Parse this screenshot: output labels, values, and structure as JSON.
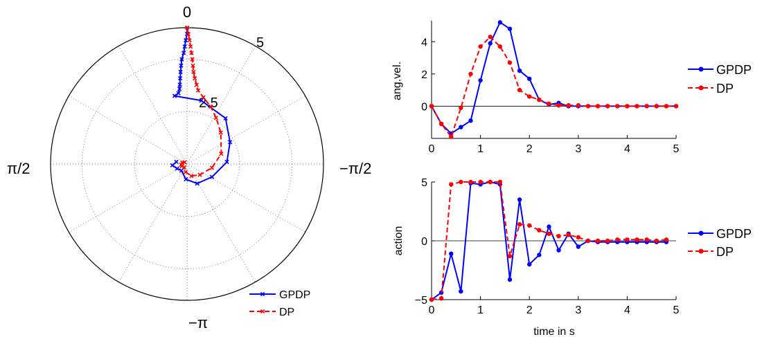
{
  "colors": {
    "gpdp": "#0000ff",
    "dp": "#ff0000",
    "axis": "#000000",
    "grid": "#808080"
  },
  "chart_data": [
    {
      "type": "polar",
      "angle_labels": {
        "top": "0",
        "right": "−π/2",
        "bottom": "−π",
        "left": "π/2"
      },
      "r_labels": [
        "2.5",
        "5"
      ],
      "rmax": 6.5,
      "legend_position": "bottom-right",
      "series": [
        {
          "name": "GPDP",
          "marker": "x",
          "line": "solid",
          "points": [
            [
              0.0,
              6.5
            ],
            [
              0.0,
              6.2
            ],
            [
              0.01,
              5.9
            ],
            [
              0.02,
              5.6
            ],
            [
              0.03,
              5.3
            ],
            [
              0.05,
              5.0
            ],
            [
              0.06,
              4.7
            ],
            [
              0.07,
              4.4
            ],
            [
              0.08,
              4.1
            ],
            [
              0.09,
              3.8
            ],
            [
              0.1,
              3.6
            ],
            [
              0.12,
              3.4
            ],
            [
              0.18,
              3.3
            ],
            [
              -0.22,
              3.1
            ],
            [
              -0.7,
              2.85
            ],
            [
              -1.1,
              2.3
            ],
            [
              -1.52,
              1.9
            ],
            [
              -2.05,
              1.34
            ],
            [
              -2.66,
              1.05
            ],
            [
              3.07,
              0.73
            ],
            [
              2.43,
              0.41
            ],
            [
              2.0,
              0.52
            ],
            [
              1.66,
              0.7
            ],
            [
              1.37,
              0.52
            ]
          ]
        },
        {
          "name": "DP",
          "marker": "x",
          "line": "dashed",
          "points": [
            [
              0.0,
              6.5
            ],
            [
              -0.01,
              6.2
            ],
            [
              -0.02,
              5.9
            ],
            [
              -0.03,
              5.6
            ],
            [
              -0.04,
              5.3
            ],
            [
              -0.05,
              5.0
            ],
            [
              -0.06,
              4.7
            ],
            [
              -0.07,
              4.4
            ],
            [
              -0.09,
              4.1
            ],
            [
              -0.12,
              3.8
            ],
            [
              -0.15,
              3.55
            ],
            [
              -0.24,
              3.27
            ],
            [
              -0.39,
              2.96
            ],
            [
              -0.56,
              2.6
            ],
            [
              -0.82,
              2.2
            ],
            [
              -1.28,
              1.7
            ],
            [
              -1.72,
              1.2
            ],
            [
              -2.27,
              0.8
            ],
            [
              -2.79,
              0.61
            ],
            [
              2.97,
              0.39
            ],
            [
              2.44,
              0.21
            ],
            [
              1.96,
              0.26
            ],
            [
              1.7,
              0.28
            ],
            [
              1.28,
              0.24
            ],
            [
              0.95,
              0.14
            ]
          ]
        }
      ]
    },
    {
      "type": "line",
      "xlabel": "",
      "ylabel": "ang.vel.",
      "xlim": [
        0,
        5
      ],
      "ylim": [
        -2,
        5.3
      ],
      "xticks": [
        0,
        1,
        2,
        3,
        4,
        5
      ],
      "yticks": [
        0,
        2,
        4
      ],
      "legend_position": "right",
      "x": [
        0,
        0.2,
        0.4,
        0.6,
        0.8,
        1.0,
        1.2,
        1.4,
        1.6,
        1.8,
        2.0,
        2.2,
        2.4,
        2.6,
        2.8,
        3.0,
        3.2,
        3.4,
        3.6,
        3.8,
        4.0,
        4.2,
        4.4,
        4.6,
        4.8,
        5.0
      ],
      "series": [
        {
          "name": "GPDP",
          "line": "solid",
          "values": [
            0,
            -1.1,
            -1.7,
            -1.3,
            -0.9,
            1.6,
            3.9,
            5.2,
            4.8,
            2.2,
            1.7,
            0.4,
            0.1,
            0.2,
            0.0,
            0.0,
            0.0,
            0.0,
            0.0,
            0.0,
            0.0,
            0.0,
            0.0,
            0.0,
            0.0,
            0.0
          ]
        },
        {
          "name": "DP",
          "line": "dashed",
          "values": [
            0,
            -1.1,
            -1.9,
            -0.1,
            2.0,
            3.7,
            4.3,
            3.7,
            2.7,
            1.0,
            0.6,
            0.4,
            0.15,
            0.05,
            0.05,
            0.05,
            0.0,
            0.0,
            0.0,
            0.0,
            0.0,
            0.0,
            0.0,
            0.0,
            0.0,
            0.0
          ]
        }
      ]
    },
    {
      "type": "line",
      "xlabel": "time in s",
      "ylabel": "action",
      "xlim": [
        0,
        5
      ],
      "ylim": [
        -5,
        5
      ],
      "xticks": [
        0,
        1,
        2,
        3,
        4,
        5
      ],
      "yticks": [
        -5,
        0,
        5
      ],
      "legend_position": "right",
      "x": [
        0,
        0.2,
        0.4,
        0.6,
        0.8,
        1.0,
        1.2,
        1.4,
        1.6,
        1.8,
        2.0,
        2.2,
        2.4,
        2.6,
        2.8,
        3.0,
        3.2,
        3.4,
        3.6,
        3.8,
        4.0,
        4.2,
        4.4,
        4.6,
        4.8
      ],
      "series": [
        {
          "name": "GPDP",
          "line": "solid",
          "values": [
            -5,
            -4.4,
            -1.1,
            -4.3,
            4.9,
            4.8,
            5.0,
            4.8,
            -3.3,
            3.5,
            -2.0,
            -1.2,
            1.2,
            -0.8,
            0.6,
            -0.5,
            0.0,
            -0.1,
            -0.1,
            -0.1,
            -0.1,
            -0.1,
            -0.1,
            -0.1,
            -0.1
          ]
        },
        {
          "name": "DP",
          "line": "dashed",
          "values": [
            -5,
            -4.9,
            4.8,
            5.0,
            5.0,
            5.0,
            5.0,
            5.0,
            -1.3,
            1.4,
            1.3,
            0.9,
            0.6,
            0.4,
            0.5,
            0.3,
            0.0,
            0.0,
            0.0,
            0.1,
            0.1,
            0.1,
            0.1,
            0.0,
            0.1
          ]
        }
      ]
    }
  ]
}
